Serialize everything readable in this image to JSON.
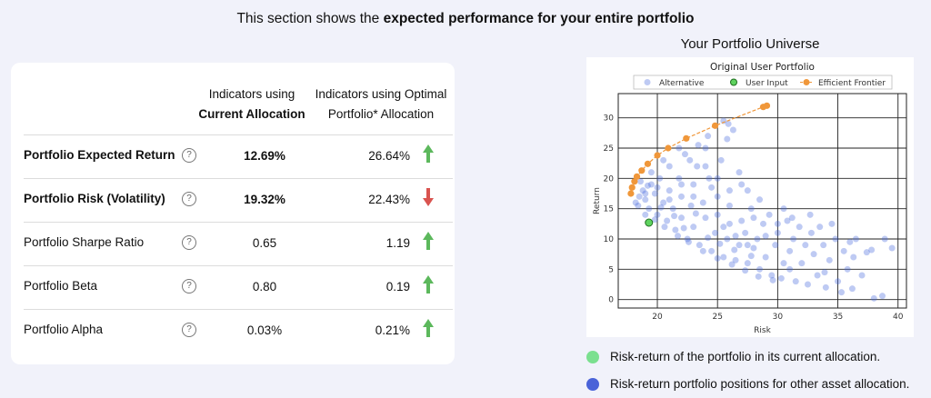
{
  "heading": {
    "prefix": "This section shows the ",
    "bold": "expected performance for your entire portfolio"
  },
  "table": {
    "col_current": {
      "line1": "Indicators using",
      "line2": "Current Allocation"
    },
    "col_optimal": {
      "line1": "Indicators using Optimal",
      "line2": "Portfolio* Allocation"
    },
    "help_icon": "?",
    "rows": [
      {
        "label": "Portfolio Expected Return",
        "current": "12.69%",
        "optimal": "26.64%",
        "trend": "up",
        "bold": true
      },
      {
        "label": "Portfolio Risk (Volatility)",
        "current": "19.32%",
        "optimal": "22.43%",
        "trend": "down",
        "bold": true
      },
      {
        "label": "Portfolio Sharpe Ratio",
        "current": "0.65",
        "optimal": "1.19",
        "trend": "up",
        "bold": false
      },
      {
        "label": "Portfolio Beta",
        "current": "0.80",
        "optimal": "0.19",
        "trend": "up",
        "bold": false
      },
      {
        "label": "Portfolio Alpha",
        "current": "0.03%",
        "optimal": "0.21%",
        "trend": "up",
        "bold": false
      }
    ],
    "colors": {
      "up": "#5cb85c",
      "down": "#d9534f"
    }
  },
  "universe": {
    "title": "Your Portfolio Universe",
    "legend": [
      {
        "text": "Risk-return of the portfolio in its current allocation.",
        "color": "#7be08f"
      },
      {
        "text": "Risk-return portfolio positions for other asset allocation.",
        "color": "#4a63d8"
      }
    ]
  },
  "chart_data": {
    "type": "scatter",
    "title": "Original User Portfolio",
    "xlabel": "Risk",
    "ylabel": "Return",
    "xlim": [
      16.75,
      40.7
    ],
    "ylim": [
      -1.4,
      34
    ],
    "xticks": [
      20,
      25,
      30,
      35,
      40
    ],
    "yticks": [
      0,
      5,
      10,
      15,
      20,
      25,
      30
    ],
    "grid": true,
    "legend_position": "top",
    "series": [
      {
        "name": "Alternative",
        "color": "#4466dd",
        "points": [
          [
            18.2,
            16
          ],
          [
            18.5,
            17
          ],
          [
            18.8,
            18
          ],
          [
            19,
            16.5
          ],
          [
            19.3,
            15
          ],
          [
            19.5,
            19
          ],
          [
            19.8,
            17.5
          ],
          [
            20,
            14
          ],
          [
            20.2,
            20
          ],
          [
            20.5,
            16
          ],
          [
            20.8,
            13
          ],
          [
            21,
            18
          ],
          [
            21,
            22
          ],
          [
            21.3,
            15
          ],
          [
            21.5,
            11.5
          ],
          [
            21.8,
            20
          ],
          [
            22,
            17
          ],
          [
            22,
            13.5
          ],
          [
            22.3,
            24
          ],
          [
            22.5,
            10
          ],
          [
            22.8,
            15.5
          ],
          [
            23,
            19
          ],
          [
            23,
            12
          ],
          [
            23.3,
            22
          ],
          [
            23.5,
            9
          ],
          [
            23.8,
            16
          ],
          [
            24,
            13.5
          ],
          [
            24,
            25
          ],
          [
            24.3,
            20
          ],
          [
            24.5,
            8
          ],
          [
            24.8,
            11
          ],
          [
            25,
            17
          ],
          [
            25,
            14
          ],
          [
            25.3,
            23
          ],
          [
            25.5,
            7
          ],
          [
            25.8,
            10
          ],
          [
            26,
            12.5
          ],
          [
            26,
            15.5
          ],
          [
            26.3,
            28
          ],
          [
            26.5,
            6.5
          ],
          [
            26.8,
            9
          ],
          [
            27,
            13
          ],
          [
            27,
            19
          ],
          [
            27.3,
            11
          ],
          [
            27.5,
            6
          ],
          [
            27.8,
            15
          ],
          [
            28,
            8.5
          ],
          [
            28.3,
            10
          ],
          [
            28.5,
            5
          ],
          [
            28.8,
            12.5
          ],
          [
            29,
            7
          ],
          [
            29.3,
            14
          ],
          [
            29.5,
            4
          ],
          [
            29.8,
            9
          ],
          [
            30,
            11
          ],
          [
            30.3,
            3.5
          ],
          [
            30.5,
            6
          ],
          [
            30.8,
            13
          ],
          [
            31,
            8
          ],
          [
            31.3,
            10
          ],
          [
            31.5,
            3
          ],
          [
            31.8,
            12
          ],
          [
            32,
            6
          ],
          [
            32.3,
            9
          ],
          [
            32.5,
            2.5
          ],
          [
            32.8,
            11
          ],
          [
            33,
            7.5
          ],
          [
            33.3,
            4
          ],
          [
            33.5,
            12
          ],
          [
            33.8,
            9
          ],
          [
            34,
            2
          ],
          [
            34.3,
            6.5
          ],
          [
            34.5,
            12.5
          ],
          [
            34.8,
            10
          ],
          [
            35,
            3
          ],
          [
            35.3,
            1.2
          ],
          [
            35.5,
            8
          ],
          [
            35.8,
            5
          ],
          [
            36,
            9.5
          ],
          [
            36.3,
            7
          ],
          [
            36.5,
            10
          ],
          [
            37,
            4
          ],
          [
            37.4,
            7.8
          ],
          [
            37.8,
            8.2
          ],
          [
            38,
            0.2
          ],
          [
            38.7,
            0.6
          ],
          [
            38.9,
            10
          ],
          [
            39.5,
            8.5
          ],
          [
            36.2,
            1.8
          ],
          [
            33.9,
            4.5
          ],
          [
            32.7,
            14
          ],
          [
            31.2,
            13.5
          ],
          [
            30.5,
            15
          ],
          [
            28.5,
            16.5
          ],
          [
            27.5,
            18
          ],
          [
            26.8,
            21
          ],
          [
            25.8,
            26.5
          ],
          [
            25.9,
            29
          ],
          [
            25.5,
            29.5
          ],
          [
            24.2,
            27
          ],
          [
            23.4,
            25.5
          ],
          [
            22.7,
            23
          ],
          [
            21.8,
            25
          ],
          [
            20.5,
            23
          ],
          [
            19.5,
            21
          ],
          [
            18.6,
            19.5
          ],
          [
            19,
            14
          ],
          [
            19.8,
            13.2
          ],
          [
            20.6,
            12
          ],
          [
            21.7,
            10.5
          ],
          [
            22.6,
            9.5
          ],
          [
            23.8,
            8
          ],
          [
            25,
            6.8
          ],
          [
            26.2,
            5.8
          ],
          [
            27.3,
            4.8
          ],
          [
            28.4,
            3.8
          ],
          [
            29.6,
            3.2
          ],
          [
            24.5,
            18.5
          ],
          [
            23,
            17
          ],
          [
            22,
            19
          ],
          [
            21,
            16.5
          ],
          [
            20,
            18.5
          ],
          [
            19,
            17.5
          ],
          [
            25.5,
            12
          ],
          [
            26.5,
            10.5
          ],
          [
            27.5,
            9
          ],
          [
            29,
            10.5
          ],
          [
            28,
            13.5
          ],
          [
            30,
            12.5
          ],
          [
            31,
            5
          ],
          [
            24,
            22
          ],
          [
            25,
            20
          ],
          [
            26,
            18
          ],
          [
            18.4,
            15.5
          ],
          [
            19.2,
            18.8
          ],
          [
            20.3,
            15.2
          ],
          [
            21.4,
            13.8
          ],
          [
            22.2,
            11.8
          ],
          [
            23.2,
            14.2
          ],
          [
            24.2,
            10.2
          ],
          [
            25.2,
            9.2
          ],
          [
            26.4,
            8.2
          ],
          [
            27.8,
            7.2
          ]
        ]
      },
      {
        "name": "User Input",
        "color": "#5fd35f",
        "points": [
          [
            19.3,
            12.7
          ]
        ]
      },
      {
        "name": "Efficient Frontier",
        "color": "#f0973a",
        "points": [
          [
            17.8,
            17.5
          ],
          [
            17.9,
            18.5
          ],
          [
            18.1,
            19.5
          ],
          [
            18.3,
            20.3
          ],
          [
            18.7,
            21.3
          ],
          [
            19.2,
            22.4
          ],
          [
            20,
            23.8
          ],
          [
            20.9,
            25
          ],
          [
            22.4,
            26.6
          ],
          [
            24.8,
            28.7
          ],
          [
            28.8,
            31.8
          ],
          [
            29.1,
            32
          ]
        ]
      }
    ]
  }
}
